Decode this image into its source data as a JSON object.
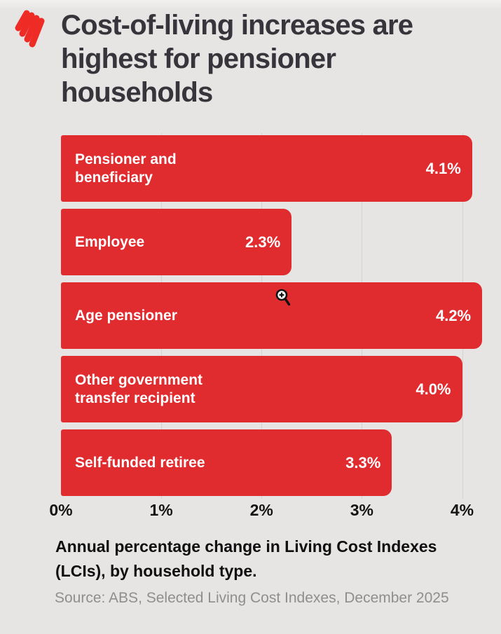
{
  "brand": {
    "name": "SBS",
    "logo_icon": "sbs-flame-logo",
    "logo_color": "#ee2b24"
  },
  "header": {
    "title": "Cost-of-living increases are highest for pensioner households",
    "title_lines": [
      "Cost-of-living increases are",
      "highest for pensioner",
      "households"
    ]
  },
  "chart_data": {
    "type": "bar",
    "orientation": "horizontal",
    "title": "Cost-of-living increases are highest for pensioner households",
    "categories": [
      "Pensioner and beneficiary",
      "Employee",
      "Age pensioner",
      "Other government transfer recipient",
      "Self-funded retiree"
    ],
    "category_lines": [
      [
        "Pensioner and",
        "beneficiary"
      ],
      [
        "Employee"
      ],
      [
        "Age pensioner"
      ],
      [
        "Other government",
        "transfer recipient"
      ],
      [
        "Self-funded retiree"
      ]
    ],
    "values": [
      4.1,
      2.3,
      4.2,
      4.0,
      3.3
    ],
    "value_labels": [
      "4.1%",
      "2.3%",
      "4.2%",
      "4.0%",
      "3.3%"
    ],
    "xlabel": "",
    "ylabel": "",
    "x_ticks": [
      "0%",
      "1%",
      "2%",
      "3%",
      "4%"
    ],
    "x_tick_values": [
      0,
      1,
      2,
      3,
      4
    ],
    "xlim": [
      0,
      4.22
    ],
    "grid": true,
    "legend": false,
    "bar_color": "#e02b2f",
    "bar_text_color": "#ffffff"
  },
  "footer": {
    "caption": "Annual percentage change in Living Cost Indexes (LCIs), by household type.",
    "caption_lines": [
      "Annual percentage change in Living Cost Indexes",
      "(LCIs), by household type."
    ],
    "source": "Source: ABS, Selected Living Cost Indexes, December 2025"
  },
  "cursor": {
    "icon": "zoom-in-magnifier-cursor"
  },
  "colors": {
    "background": "#e7e5e4",
    "bar_red": "#e02b2f",
    "logo_red": "#ee2b24",
    "title_text": "#38343b",
    "axis_text": "#141414",
    "caption_text": "#0f0f0f",
    "source_text": "#8f8d8d",
    "gridline": "#d5d3d2",
    "bar_label_text": "#ffffff"
  }
}
